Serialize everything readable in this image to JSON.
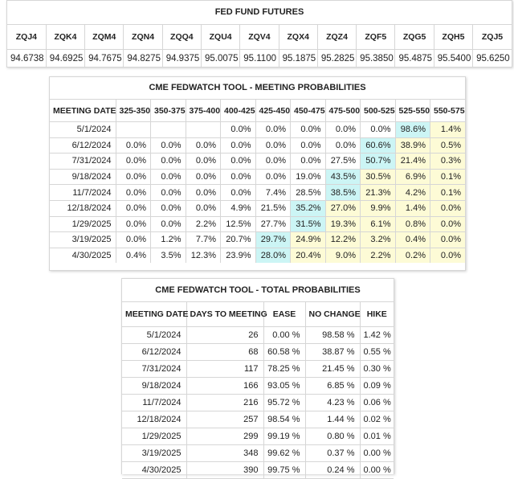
{
  "futures": {
    "title": "FED FUND FUTURES",
    "contracts": [
      {
        "code": "ZQJ4",
        "price": "94.6738"
      },
      {
        "code": "ZQK4",
        "price": "94.6925"
      },
      {
        "code": "ZQM4",
        "price": "94.7675"
      },
      {
        "code": "ZQN4",
        "price": "94.8275"
      },
      {
        "code": "ZQQ4",
        "price": "94.9375"
      },
      {
        "code": "ZQU4",
        "price": "95.0075"
      },
      {
        "code": "ZQV4",
        "price": "95.1100"
      },
      {
        "code": "ZQX4",
        "price": "95.1875"
      },
      {
        "code": "ZQZ4",
        "price": "95.2825"
      },
      {
        "code": "ZQF5",
        "price": "95.3850"
      },
      {
        "code": "ZQG5",
        "price": "95.4875"
      },
      {
        "code": "ZQH5",
        "price": "95.5400"
      },
      {
        "code": "ZQJ5",
        "price": "95.6250"
      }
    ]
  },
  "meeting": {
    "title": "CME FEDWATCH TOOL - MEETING PROBABILITIES",
    "date_header": "MEETING DATE",
    "columns": [
      "325-350",
      "350-375",
      "375-400",
      "400-425",
      "425-450",
      "450-475",
      "475-500",
      "500-525",
      "525-550",
      "550-575"
    ],
    "highlight_colors": {
      "blue": "#ccf5f5",
      "yellow": "#fdfbd6"
    },
    "rows": [
      {
        "date": "5/1/2024",
        "values": [
          "",
          "",
          "",
          "0.0%",
          "0.0%",
          "0.0%",
          "0.0%",
          "0.0%",
          "98.6%",
          "1.4%"
        ],
        "max_index": 8
      },
      {
        "date": "6/12/2024",
        "values": [
          "0.0%",
          "0.0%",
          "0.0%",
          "0.0%",
          "0.0%",
          "0.0%",
          "0.0%",
          "60.6%",
          "38.9%",
          "0.5%"
        ],
        "max_index": 7
      },
      {
        "date": "7/31/2024",
        "values": [
          "0.0%",
          "0.0%",
          "0.0%",
          "0.0%",
          "0.0%",
          "0.0%",
          "27.5%",
          "50.7%",
          "21.4%",
          "0.3%"
        ],
        "max_index": 7
      },
      {
        "date": "9/18/2024",
        "values": [
          "0.0%",
          "0.0%",
          "0.0%",
          "0.0%",
          "0.0%",
          "19.0%",
          "43.5%",
          "30.5%",
          "6.9%",
          "0.1%"
        ],
        "max_index": 6
      },
      {
        "date": "11/7/2024",
        "values": [
          "0.0%",
          "0.0%",
          "0.0%",
          "0.0%",
          "7.4%",
          "28.5%",
          "38.5%",
          "21.3%",
          "4.2%",
          "0.1%"
        ],
        "max_index": 6
      },
      {
        "date": "12/18/2024",
        "values": [
          "0.0%",
          "0.0%",
          "0.0%",
          "4.9%",
          "21.5%",
          "35.2%",
          "27.0%",
          "9.9%",
          "1.4%",
          "0.0%"
        ],
        "max_index": 5
      },
      {
        "date": "1/29/2025",
        "values": [
          "0.0%",
          "0.0%",
          "2.2%",
          "12.5%",
          "27.7%",
          "31.5%",
          "19.3%",
          "6.1%",
          "0.8%",
          "0.0%"
        ],
        "max_index": 5
      },
      {
        "date": "3/19/2025",
        "values": [
          "0.0%",
          "1.2%",
          "7.7%",
          "20.7%",
          "29.7%",
          "24.9%",
          "12.2%",
          "3.2%",
          "0.4%",
          "0.0%"
        ],
        "max_index": 4
      },
      {
        "date": "4/30/2025",
        "values": [
          "0.4%",
          "3.5%",
          "12.3%",
          "23.9%",
          "28.0%",
          "20.4%",
          "9.0%",
          "2.2%",
          "0.2%",
          "0.0%"
        ],
        "max_index": 4
      }
    ]
  },
  "totals": {
    "title": "CME FEDWATCH TOOL - TOTAL PROBABILITIES",
    "headers": [
      "MEETING DATE",
      "DAYS TO MEETING",
      "EASE",
      "NO CHANGE",
      "HIKE"
    ],
    "rows": [
      [
        "5/1/2024",
        "26",
        "0.00 %",
        "98.58 %",
        "1.42 %"
      ],
      [
        "6/12/2024",
        "68",
        "60.58 %",
        "38.87 %",
        "0.55 %"
      ],
      [
        "7/31/2024",
        "117",
        "78.25 %",
        "21.45 %",
        "0.30 %"
      ],
      [
        "9/18/2024",
        "166",
        "93.05 %",
        "6.85 %",
        "0.09 %"
      ],
      [
        "11/7/2024",
        "216",
        "95.72 %",
        "4.23 %",
        "0.06 %"
      ],
      [
        "12/18/2024",
        "257",
        "98.54 %",
        "1.44 %",
        "0.02 %"
      ],
      [
        "1/29/2025",
        "299",
        "99.19 %",
        "0.80 %",
        "0.01 %"
      ],
      [
        "3/19/2025",
        "348",
        "99.62 %",
        "0.37 %",
        "0.00 %"
      ],
      [
        "4/30/2025",
        "390",
        "99.75 %",
        "0.24 %",
        "0.00 %"
      ]
    ]
  }
}
